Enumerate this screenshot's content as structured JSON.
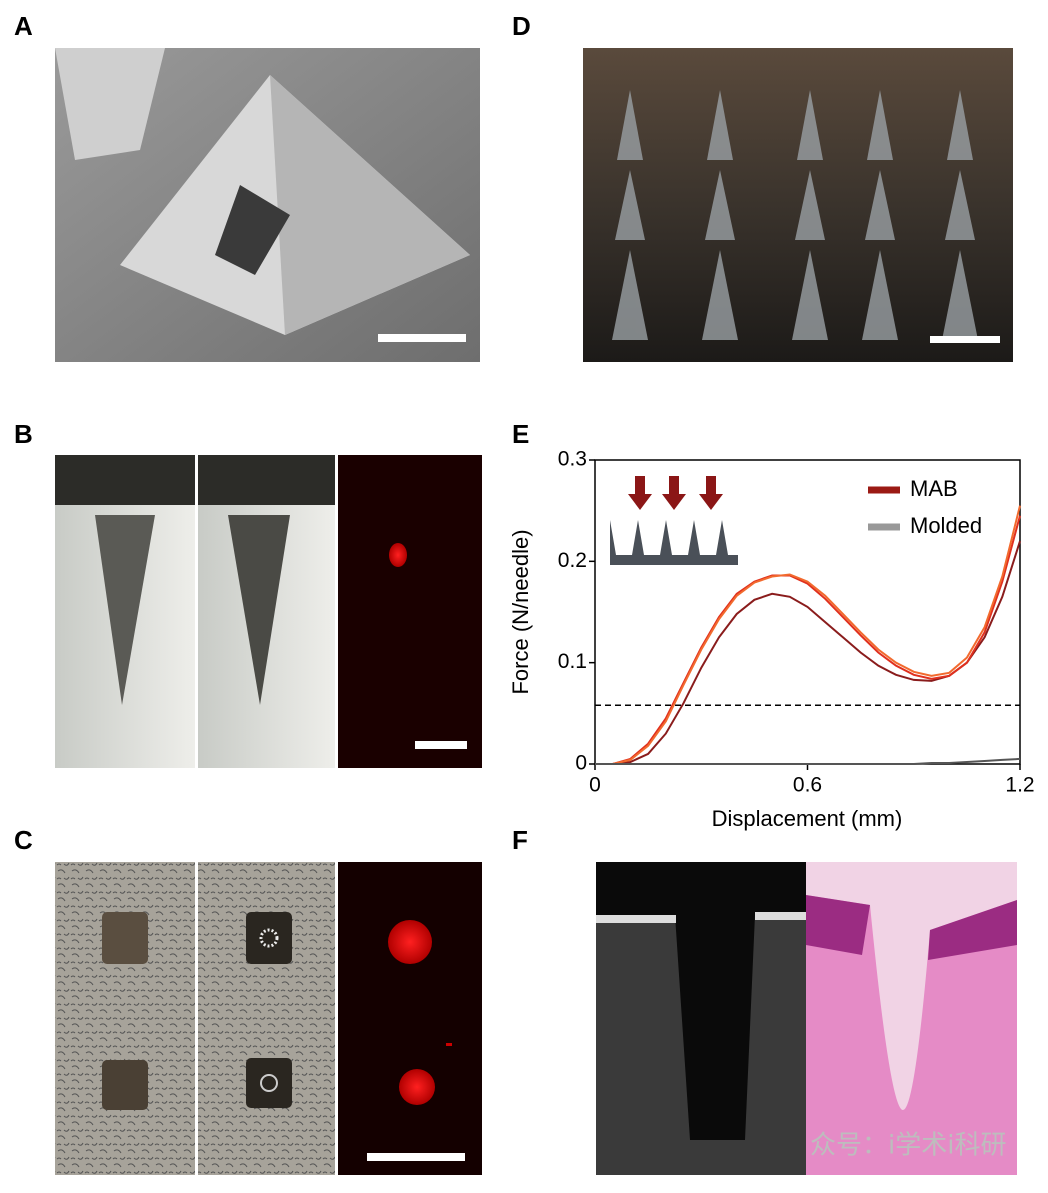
{
  "panels": [
    {
      "label": "A"
    },
    {
      "label": "B"
    },
    {
      "label": "C"
    },
    {
      "label": "D"
    },
    {
      "label": "E"
    },
    {
      "label": "F"
    }
  ],
  "watermark": "众号：i学术i科研",
  "chart_data": {
    "type": "line",
    "xlabel": "Displacement (mm)",
    "ylabel": "Force (N/needle)",
    "x": [
      0,
      0.05,
      0.1,
      0.15,
      0.2,
      0.25,
      0.3,
      0.35,
      0.4,
      0.45,
      0.5,
      0.55,
      0.6,
      0.65,
      0.7,
      0.75,
      0.8,
      0.85,
      0.9,
      0.95,
      1.0,
      1.05,
      1.1,
      1.15,
      1.2
    ],
    "xlim": [
      0,
      1.2
    ],
    "xticks": [
      0,
      0.6,
      1.2
    ],
    "ylim": [
      0,
      0.3
    ],
    "yticks": [
      0,
      0.1,
      0.2,
      0.3
    ],
    "threshold": 0.058,
    "series": [
      {
        "name": "MAB",
        "color": "#9b1a14",
        "curves": [
          {
            "color": "#8a1c1c",
            "values": [
              0,
              0,
              0.002,
              0.01,
              0.03,
              0.06,
              0.095,
              0.125,
              0.148,
              0.162,
              0.168,
              0.165,
              0.155,
              0.14,
              0.125,
              0.11,
              0.097,
              0.088,
              0.083,
              0.082,
              0.087,
              0.1,
              0.125,
              0.165,
              0.22
            ]
          },
          {
            "color": "#e0301e",
            "values": [
              0,
              0,
              0.005,
              0.02,
              0.045,
              0.08,
              0.115,
              0.145,
              0.168,
              0.18,
              0.186,
              0.186,
              0.178,
              0.163,
              0.145,
              0.127,
              0.11,
              0.097,
              0.088,
              0.084,
              0.087,
              0.1,
              0.13,
              0.18,
              0.245
            ]
          },
          {
            "color": "#f26a2e",
            "values": [
              0,
              0,
              0.004,
              0.018,
              0.042,
              0.078,
              0.113,
              0.143,
              0.166,
              0.179,
              0.185,
              0.187,
              0.18,
              0.166,
              0.148,
              0.13,
              0.113,
              0.1,
              0.091,
              0.087,
              0.09,
              0.105,
              0.135,
              0.185,
              0.255
            ]
          }
        ]
      },
      {
        "name": "Molded",
        "color": "#999999",
        "curves": [
          {
            "color": "#555555",
            "values": [
              0,
              0,
              0,
              0,
              0,
              0,
              0,
              0,
              0,
              0,
              0,
              0,
              0,
              0,
              0,
              0,
              0,
              0,
              0,
              0.001,
              0.001,
              0.002,
              0.003,
              0.004,
              0.005
            ]
          }
        ]
      }
    ]
  }
}
